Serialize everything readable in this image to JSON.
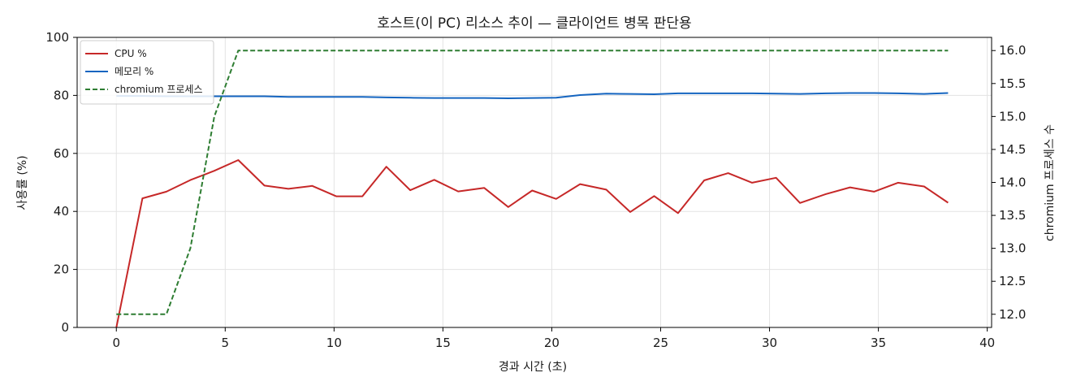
{
  "chart_data": {
    "type": "line",
    "title": "호스트(이 PC) 리소스 추이 — 클라이언트 병목 판단용",
    "xlabel": "경과 시간 (초)",
    "ylabel": "사용률 (%)",
    "y2label": "chromium 프로세스 수",
    "xlim": [
      -1.8,
      40.2
    ],
    "ylim": [
      0,
      100
    ],
    "y2lim": [
      11.8,
      16.2
    ],
    "xticks": [
      0,
      5,
      10,
      15,
      20,
      25,
      30,
      35,
      40
    ],
    "yticks": [
      0,
      20,
      40,
      60,
      80,
      100
    ],
    "y2ticks": [
      12.0,
      12.5,
      13.0,
      13.5,
      14.0,
      14.5,
      15.0,
      15.5,
      16.0
    ],
    "grid": true,
    "legend_position": "top-left",
    "x": [
      0,
      1.2,
      2.3,
      3.4,
      4.5,
      5.6,
      6.8,
      7.9,
      9.0,
      10.1,
      11.3,
      12.4,
      13.5,
      14.6,
      15.7,
      16.9,
      18.0,
      19.1,
      20.2,
      21.3,
      22.5,
      23.6,
      24.7,
      25.8,
      27.0,
      28.1,
      29.2,
      30.3,
      31.4,
      32.6,
      33.7,
      34.8,
      35.9,
      37.1,
      38.2
    ],
    "series": [
      {
        "name": "CPU %",
        "axis": "left",
        "color": "#c62828",
        "style": "solid",
        "values": [
          0,
          44.5,
          46.8,
          50.8,
          54.0,
          57.7,
          48.9,
          47.8,
          48.8,
          45.2,
          45.2,
          55.4,
          47.3,
          50.9,
          46.9,
          48.1,
          41.5,
          47.2,
          44.3,
          49.4,
          47.5,
          39.8,
          45.3,
          39.4,
          50.7,
          53.2,
          49.9,
          51.6,
          42.9,
          46.0,
          48.3,
          46.8,
          49.9,
          48.6,
          43.0
        ]
      },
      {
        "name": "메모리 %",
        "axis": "left",
        "color": "#1565c0",
        "style": "solid",
        "values": [
          79.8,
          79.8,
          79.7,
          79.7,
          79.7,
          79.7,
          79.7,
          79.5,
          79.5,
          79.5,
          79.5,
          79.3,
          79.2,
          79.1,
          79.1,
          79.1,
          79.0,
          79.1,
          79.2,
          80.1,
          80.6,
          80.5,
          80.4,
          80.7,
          80.7,
          80.7,
          80.7,
          80.6,
          80.5,
          80.7,
          80.8,
          80.8,
          80.7,
          80.5,
          80.8
        ]
      },
      {
        "name": "chromium 프로세스",
        "axis": "right",
        "color": "#2e7d32",
        "style": "dashed",
        "values": [
          12,
          12,
          12,
          13,
          15,
          16,
          16,
          16,
          16,
          16,
          16,
          16,
          16,
          16,
          16,
          16,
          16,
          16,
          16,
          16,
          16,
          16,
          16,
          16,
          16,
          16,
          16,
          16,
          16,
          16,
          16,
          16,
          16,
          16,
          16
        ]
      }
    ]
  }
}
